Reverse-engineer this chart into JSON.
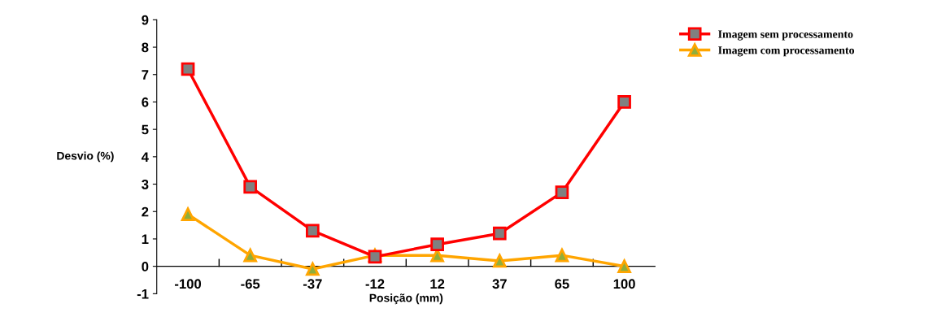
{
  "chart_data": {
    "type": "line",
    "xlabel": "Posição (mm)",
    "ylabel": "Desvio (%)",
    "categories": [
      "-100",
      "-65",
      "-37",
      "-12",
      "12",
      "37",
      "65",
      "100"
    ],
    "series": [
      {
        "name": "Imagem sem processamento",
        "color": "#ff0000",
        "marker": "square",
        "values": [
          7.2,
          2.9,
          1.3,
          0.35,
          0.8,
          1.2,
          2.7,
          6.0
        ]
      },
      {
        "name": "Imagem com processamento",
        "color": "#ffa500",
        "marker": "triangle",
        "values": [
          1.9,
          0.4,
          -0.1,
          0.4,
          0.4,
          0.2,
          0.4,
          0.0
        ]
      }
    ],
    "ylim": [
      -1,
      9
    ],
    "yticks": [
      -1,
      0,
      1,
      2,
      3,
      4,
      5,
      6,
      7,
      8,
      9
    ],
    "grid": false,
    "legend": "top right"
  }
}
